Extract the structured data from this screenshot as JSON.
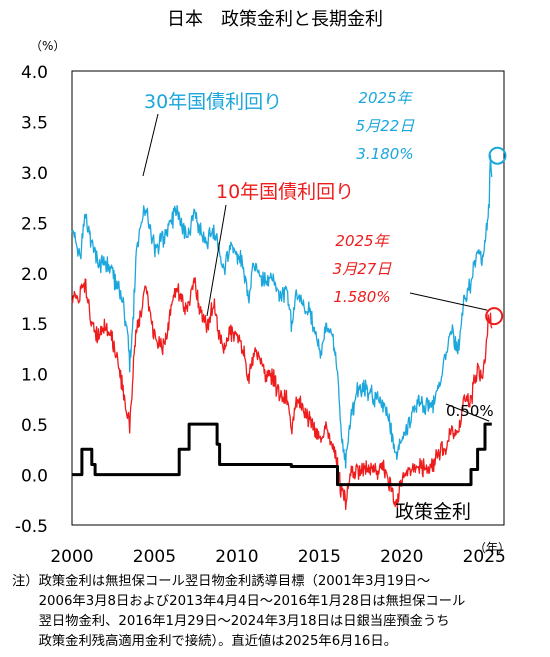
{
  "chart_data": {
    "type": "line",
    "title": "日本　政策金利と長期金利",
    "ylabel_unit": "（%）",
    "xlabel_unit": "（年）",
    "xlim": [
      2000,
      2026.2
    ],
    "ylim": [
      -0.5,
      4.0
    ],
    "y_ticks": [
      "4.0",
      "3.5",
      "3.0",
      "2.5",
      "2.0",
      "1.5",
      "1.0",
      "0.5",
      "0.0",
      "-0.5"
    ],
    "x_ticks": [
      "2000",
      "2005",
      "2010",
      "2015",
      "2020",
      "2025"
    ],
    "series": [
      {
        "name": "30年国債利回り",
        "color": "#1ba6dc",
        "points": [
          [
            2000.0,
            2.45
          ],
          [
            2000.5,
            2.15
          ],
          [
            2000.8,
            2.55
          ],
          [
            2001.2,
            2.3
          ],
          [
            2001.6,
            2.05
          ],
          [
            2002.0,
            2.1
          ],
          [
            2002.4,
            2.0
          ],
          [
            2002.8,
            1.85
          ],
          [
            2003.1,
            1.7
          ],
          [
            2003.4,
            1.35
          ],
          [
            2003.5,
            1.05
          ],
          [
            2003.7,
            1.5
          ],
          [
            2003.9,
            2.2
          ],
          [
            2004.2,
            2.5
          ],
          [
            2004.5,
            2.65
          ],
          [
            2004.8,
            2.35
          ],
          [
            2005.1,
            2.2
          ],
          [
            2005.5,
            2.35
          ],
          [
            2005.9,
            2.45
          ],
          [
            2006.3,
            2.6
          ],
          [
            2006.6,
            2.5
          ],
          [
            2007.0,
            2.35
          ],
          [
            2007.4,
            2.6
          ],
          [
            2007.8,
            2.4
          ],
          [
            2008.2,
            2.3
          ],
          [
            2008.6,
            2.45
          ],
          [
            2008.9,
            2.2
          ],
          [
            2009.2,
            2.05
          ],
          [
            2009.6,
            2.25
          ],
          [
            2010.0,
            2.2
          ],
          [
            2010.4,
            2.05
          ],
          [
            2010.7,
            1.75
          ],
          [
            2011.0,
            2.05
          ],
          [
            2011.4,
            2.0
          ],
          [
            2011.8,
            1.9
          ],
          [
            2012.2,
            1.95
          ],
          [
            2012.6,
            1.75
          ],
          [
            2013.0,
            1.85
          ],
          [
            2013.3,
            1.5
          ],
          [
            2013.6,
            1.8
          ],
          [
            2014.0,
            1.7
          ],
          [
            2014.4,
            1.6
          ],
          [
            2014.8,
            1.4
          ],
          [
            2015.1,
            1.2
          ],
          [
            2015.4,
            1.5
          ],
          [
            2015.8,
            1.4
          ],
          [
            2016.1,
            1.05
          ],
          [
            2016.3,
            0.45
          ],
          [
            2016.6,
            0.12
          ],
          [
            2016.9,
            0.55
          ],
          [
            2017.3,
            0.85
          ],
          [
            2017.7,
            0.85
          ],
          [
            2018.1,
            0.82
          ],
          [
            2018.5,
            0.75
          ],
          [
            2018.9,
            0.65
          ],
          [
            2019.2,
            0.55
          ],
          [
            2019.5,
            0.3
          ],
          [
            2019.7,
            0.2
          ],
          [
            2019.9,
            0.3
          ],
          [
            2020.2,
            0.4
          ],
          [
            2020.6,
            0.6
          ],
          [
            2021.0,
            0.7
          ],
          [
            2021.5,
            0.68
          ],
          [
            2021.9,
            0.7
          ],
          [
            2022.3,
            0.9
          ],
          [
            2022.7,
            1.2
          ],
          [
            2023.0,
            1.45
          ],
          [
            2023.4,
            1.2
          ],
          [
            2023.8,
            1.75
          ],
          [
            2024.2,
            1.9
          ],
          [
            2024.6,
            2.25
          ],
          [
            2024.9,
            2.15
          ],
          [
            2025.1,
            2.35
          ],
          [
            2025.2,
            2.45
          ],
          [
            2025.3,
            2.7
          ],
          [
            2025.38,
            3.18
          ],
          [
            2025.46,
            2.95
          ]
        ]
      },
      {
        "name": "10年国債利回り",
        "color": "#ee1c1c",
        "points": [
          [
            2000.0,
            1.75
          ],
          [
            2000.4,
            1.75
          ],
          [
            2000.8,
            1.9
          ],
          [
            2001.2,
            1.45
          ],
          [
            2001.6,
            1.35
          ],
          [
            2002.0,
            1.45
          ],
          [
            2002.4,
            1.35
          ],
          [
            2002.8,
            1.1
          ],
          [
            2003.1,
            0.8
          ],
          [
            2003.4,
            0.55
          ],
          [
            2003.5,
            0.45
          ],
          [
            2003.7,
            1.0
          ],
          [
            2003.9,
            1.45
          ],
          [
            2004.2,
            1.6
          ],
          [
            2004.5,
            1.85
          ],
          [
            2004.8,
            1.5
          ],
          [
            2005.1,
            1.35
          ],
          [
            2005.5,
            1.25
          ],
          [
            2005.9,
            1.5
          ],
          [
            2006.3,
            1.85
          ],
          [
            2006.6,
            1.75
          ],
          [
            2007.0,
            1.65
          ],
          [
            2007.4,
            1.9
          ],
          [
            2007.8,
            1.6
          ],
          [
            2008.2,
            1.45
          ],
          [
            2008.6,
            1.7
          ],
          [
            2008.9,
            1.4
          ],
          [
            2009.2,
            1.3
          ],
          [
            2009.6,
            1.4
          ],
          [
            2010.0,
            1.35
          ],
          [
            2010.4,
            1.25
          ],
          [
            2010.7,
            0.95
          ],
          [
            2011.0,
            1.2
          ],
          [
            2011.4,
            1.15
          ],
          [
            2011.8,
            1.0
          ],
          [
            2012.2,
            0.95
          ],
          [
            2012.6,
            0.8
          ],
          [
            2013.0,
            0.75
          ],
          [
            2013.3,
            0.45
          ],
          [
            2013.6,
            0.75
          ],
          [
            2014.0,
            0.65
          ],
          [
            2014.4,
            0.55
          ],
          [
            2014.8,
            0.45
          ],
          [
            2015.1,
            0.3
          ],
          [
            2015.4,
            0.45
          ],
          [
            2015.8,
            0.3
          ],
          [
            2016.1,
            0.1
          ],
          [
            2016.3,
            -0.15
          ],
          [
            2016.6,
            -0.25
          ],
          [
            2016.9,
            0.0
          ],
          [
            2017.3,
            0.06
          ],
          [
            2017.7,
            0.05
          ],
          [
            2018.1,
            0.07
          ],
          [
            2018.5,
            0.05
          ],
          [
            2018.9,
            0.1
          ],
          [
            2019.2,
            -0.05
          ],
          [
            2019.5,
            -0.2
          ],
          [
            2019.7,
            -0.25
          ],
          [
            2019.9,
            -0.1
          ],
          [
            2020.2,
            0.0
          ],
          [
            2020.6,
            0.03
          ],
          [
            2021.0,
            0.08
          ],
          [
            2021.5,
            0.05
          ],
          [
            2021.9,
            0.1
          ],
          [
            2022.3,
            0.25
          ],
          [
            2022.7,
            0.25
          ],
          [
            2023.0,
            0.45
          ],
          [
            2023.4,
            0.4
          ],
          [
            2023.8,
            0.75
          ],
          [
            2024.2,
            0.75
          ],
          [
            2024.6,
            1.05
          ],
          [
            2024.9,
            0.95
          ],
          [
            2025.1,
            1.25
          ],
          [
            2025.2,
            1.4
          ],
          [
            2025.24,
            1.58
          ],
          [
            2025.38,
            1.5
          ],
          [
            2025.46,
            1.45
          ]
        ]
      },
      {
        "name": "政策金利",
        "color": "#000000",
        "points": [
          [
            2000.0,
            0.0
          ],
          [
            2000.6,
            0.0
          ],
          [
            2000.6,
            0.25
          ],
          [
            2001.2,
            0.25
          ],
          [
            2001.2,
            0.1
          ],
          [
            2001.4,
            0.1
          ],
          [
            2001.4,
            0.0
          ],
          [
            2006.5,
            0.0
          ],
          [
            2006.5,
            0.25
          ],
          [
            2007.1,
            0.25
          ],
          [
            2007.1,
            0.5
          ],
          [
            2008.8,
            0.5
          ],
          [
            2008.8,
            0.3
          ],
          [
            2008.95,
            0.3
          ],
          [
            2008.95,
            0.1
          ],
          [
            2013.3,
            0.1
          ],
          [
            2013.3,
            0.08
          ],
          [
            2016.1,
            0.08
          ],
          [
            2016.1,
            -0.1
          ],
          [
            2024.2,
            -0.1
          ],
          [
            2024.2,
            0.05
          ],
          [
            2024.6,
            0.05
          ],
          [
            2024.6,
            0.25
          ],
          [
            2025.05,
            0.25
          ],
          [
            2025.05,
            0.5
          ],
          [
            2025.46,
            0.5
          ]
        ]
      }
    ],
    "annotations": {
      "label_30y": "30年国債利回り",
      "label_10y": "10年国債利回り",
      "label_policy": "政策金利",
      "label_policy_value": "0.50%",
      "marker_30y": {
        "line1": "2025年",
        "line2": "5月22日",
        "line3": "3.180%",
        "x": 2025.38,
        "y": 3.18
      },
      "marker_10y": {
        "line1": "2025年",
        "line2": "3月27日",
        "line3": "1.580%",
        "x": 2025.24,
        "y": 1.58
      }
    }
  },
  "note": {
    "line1": "注）政策金利は無担保コール翌日物金利誘導目標（2001年3月19日～",
    "line2": "　　2006年3月8日および2013年4月4日～2016年1月28日は無担保コール",
    "line3": "　　翌日物金利、2016年1月29日～2024年3月18日は日銀当座預金うち",
    "line4": "　　政策金利残高適用金利で接続）。直近値は2025年6月16日。"
  }
}
